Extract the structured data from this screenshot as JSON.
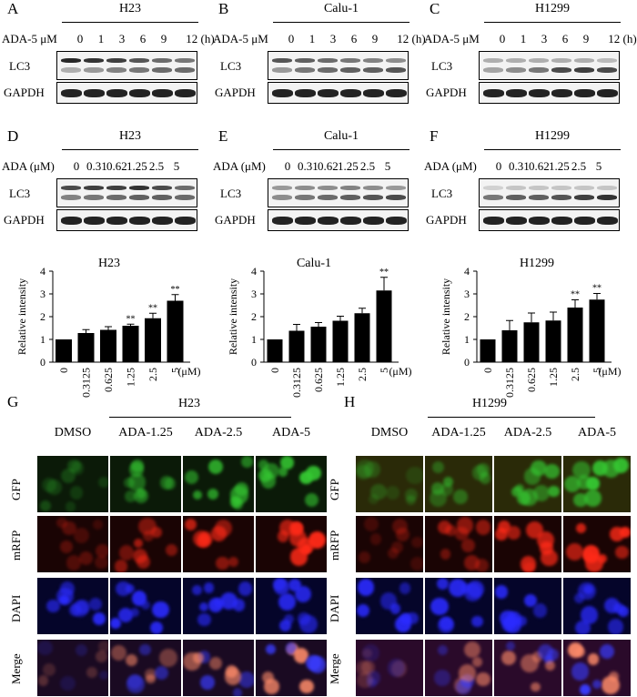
{
  "panels": {
    "A": {
      "letter": "A",
      "cell": "H23"
    },
    "B": {
      "letter": "B",
      "cell": "Calu-1"
    },
    "C": {
      "letter": "C",
      "cell": "H1299"
    },
    "D": {
      "letter": "D",
      "cell": "H23"
    },
    "E": {
      "letter": "E",
      "cell": "Calu-1"
    },
    "F": {
      "letter": "F",
      "cell": "H1299"
    },
    "G": {
      "letter": "G",
      "cell": "H23"
    },
    "H": {
      "letter": "H",
      "cell": "H1299"
    }
  },
  "time_blot": {
    "treatment_label": "ADA-5 μM",
    "times": [
      "0",
      "1",
      "3",
      "6",
      "9",
      "12 (h)"
    ],
    "rows": [
      "LC3",
      "GAPDH"
    ]
  },
  "dose_blot": {
    "treatment_label": "ADA (μM)",
    "doses": [
      "0",
      "0.31",
      "0.62",
      "1.25",
      "2.5",
      "5"
    ],
    "rows": [
      "LC3",
      "GAPDH"
    ]
  },
  "chart_data": [
    {
      "type": "bar",
      "title": "H23",
      "ylabel": "Relative intensity",
      "unit": "(μM)",
      "categories": [
        "0",
        "0.3125",
        "0.625",
        "1.25",
        "2.5",
        "5"
      ],
      "values": [
        1,
        1.28,
        1.42,
        1.6,
        1.93,
        2.7
      ],
      "errors": [
        0,
        0.15,
        0.14,
        0.07,
        0.22,
        0.27
      ],
      "significance": [
        "",
        "",
        "",
        "**",
        "**",
        "**"
      ],
      "ylim": [
        0,
        4
      ],
      "yticks": [
        "0",
        "1",
        "2",
        "3",
        "4"
      ]
    },
    {
      "type": "bar",
      "title": "Calu-1",
      "ylabel": "Relative intensity",
      "unit": "(μM)",
      "categories": [
        "0",
        "0.3125",
        "0.625",
        "1.25",
        "2.5",
        "5"
      ],
      "values": [
        1,
        1.38,
        1.56,
        1.82,
        2.15,
        3.15
      ],
      "errors": [
        0,
        0.28,
        0.18,
        0.2,
        0.22,
        0.58
      ],
      "significance": [
        "",
        "",
        "",
        "",
        "",
        "**"
      ],
      "ylim": [
        0,
        4
      ],
      "yticks": [
        "0",
        "1",
        "2",
        "3",
        "4"
      ]
    },
    {
      "type": "bar",
      "title": "H1299",
      "ylabel": "Relative intensity",
      "unit": "(μM)",
      "categories": [
        "0",
        "0.3125",
        "0.625",
        "1.25",
        "2.5",
        "5"
      ],
      "values": [
        1,
        1.4,
        1.75,
        1.83,
        2.4,
        2.75
      ],
      "errors": [
        0,
        0.43,
        0.41,
        0.37,
        0.34,
        0.27
      ],
      "significance": [
        "",
        "",
        "",
        "",
        "**",
        "**"
      ],
      "ylim": [
        0,
        4
      ],
      "yticks": [
        "0",
        "1",
        "2",
        "3",
        "4"
      ]
    }
  ],
  "microscopy": {
    "columns": [
      "DMSO",
      "ADA-1.25",
      "ADA-2.5",
      "ADA-5"
    ],
    "rows": [
      "GFP",
      "mRFP",
      "DAPI",
      "Merge"
    ]
  }
}
